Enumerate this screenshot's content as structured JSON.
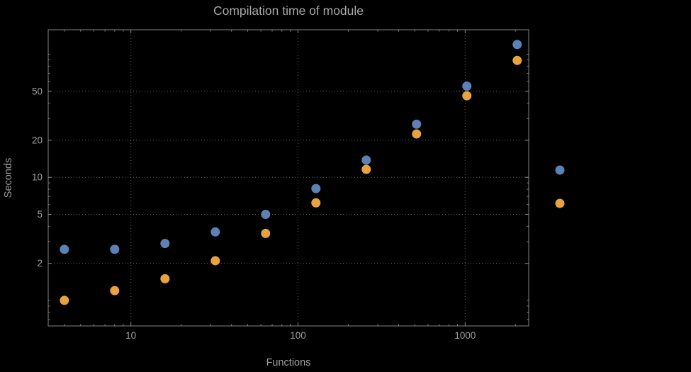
{
  "chart_data": {
    "type": "scatter",
    "title": "Compilation time of module",
    "xlabel": "Functions",
    "ylabel": "Seconds",
    "x_scale": "log",
    "y_scale": "log",
    "xlim": [
      3.2,
      2400
    ],
    "ylim": [
      0.62,
      158
    ],
    "x_ticks": [
      10,
      100,
      1000
    ],
    "x_tick_labels": [
      "10",
      "100",
      "1000"
    ],
    "y_ticks": [
      2,
      5,
      10,
      20,
      50
    ],
    "y_tick_labels": [
      "2",
      "5",
      "10",
      "20",
      "50"
    ],
    "grid": true,
    "grid_style": "dotted",
    "legend_position": "right",
    "x": [
      4,
      8,
      16,
      32,
      64,
      128,
      256,
      512,
      1024,
      2048
    ],
    "series": [
      {
        "name": "series-blue",
        "color": "#5e81b5",
        "values": [
          2.6,
          2.6,
          2.9,
          3.6,
          5.0,
          8.1,
          13.8,
          27,
          55,
          120
        ]
      },
      {
        "name": "series-orange",
        "color": "#e8a33d",
        "values": [
          1.0,
          1.2,
          1.5,
          2.1,
          3.5,
          6.2,
          11.6,
          22.5,
          46,
          89
        ]
      }
    ],
    "legend_markers": [
      {
        "series": "series-blue",
        "color": "#5e81b5"
      },
      {
        "series": "series-orange",
        "color": "#e8a33d"
      }
    ]
  },
  "colors": {
    "background": "#000000",
    "frame": "#858585",
    "grid": "#5e5e5e",
    "tick_text": "#9e9e9e",
    "title_text": "#a8a8a8",
    "axis_label_text": "#9e9e9e"
  }
}
